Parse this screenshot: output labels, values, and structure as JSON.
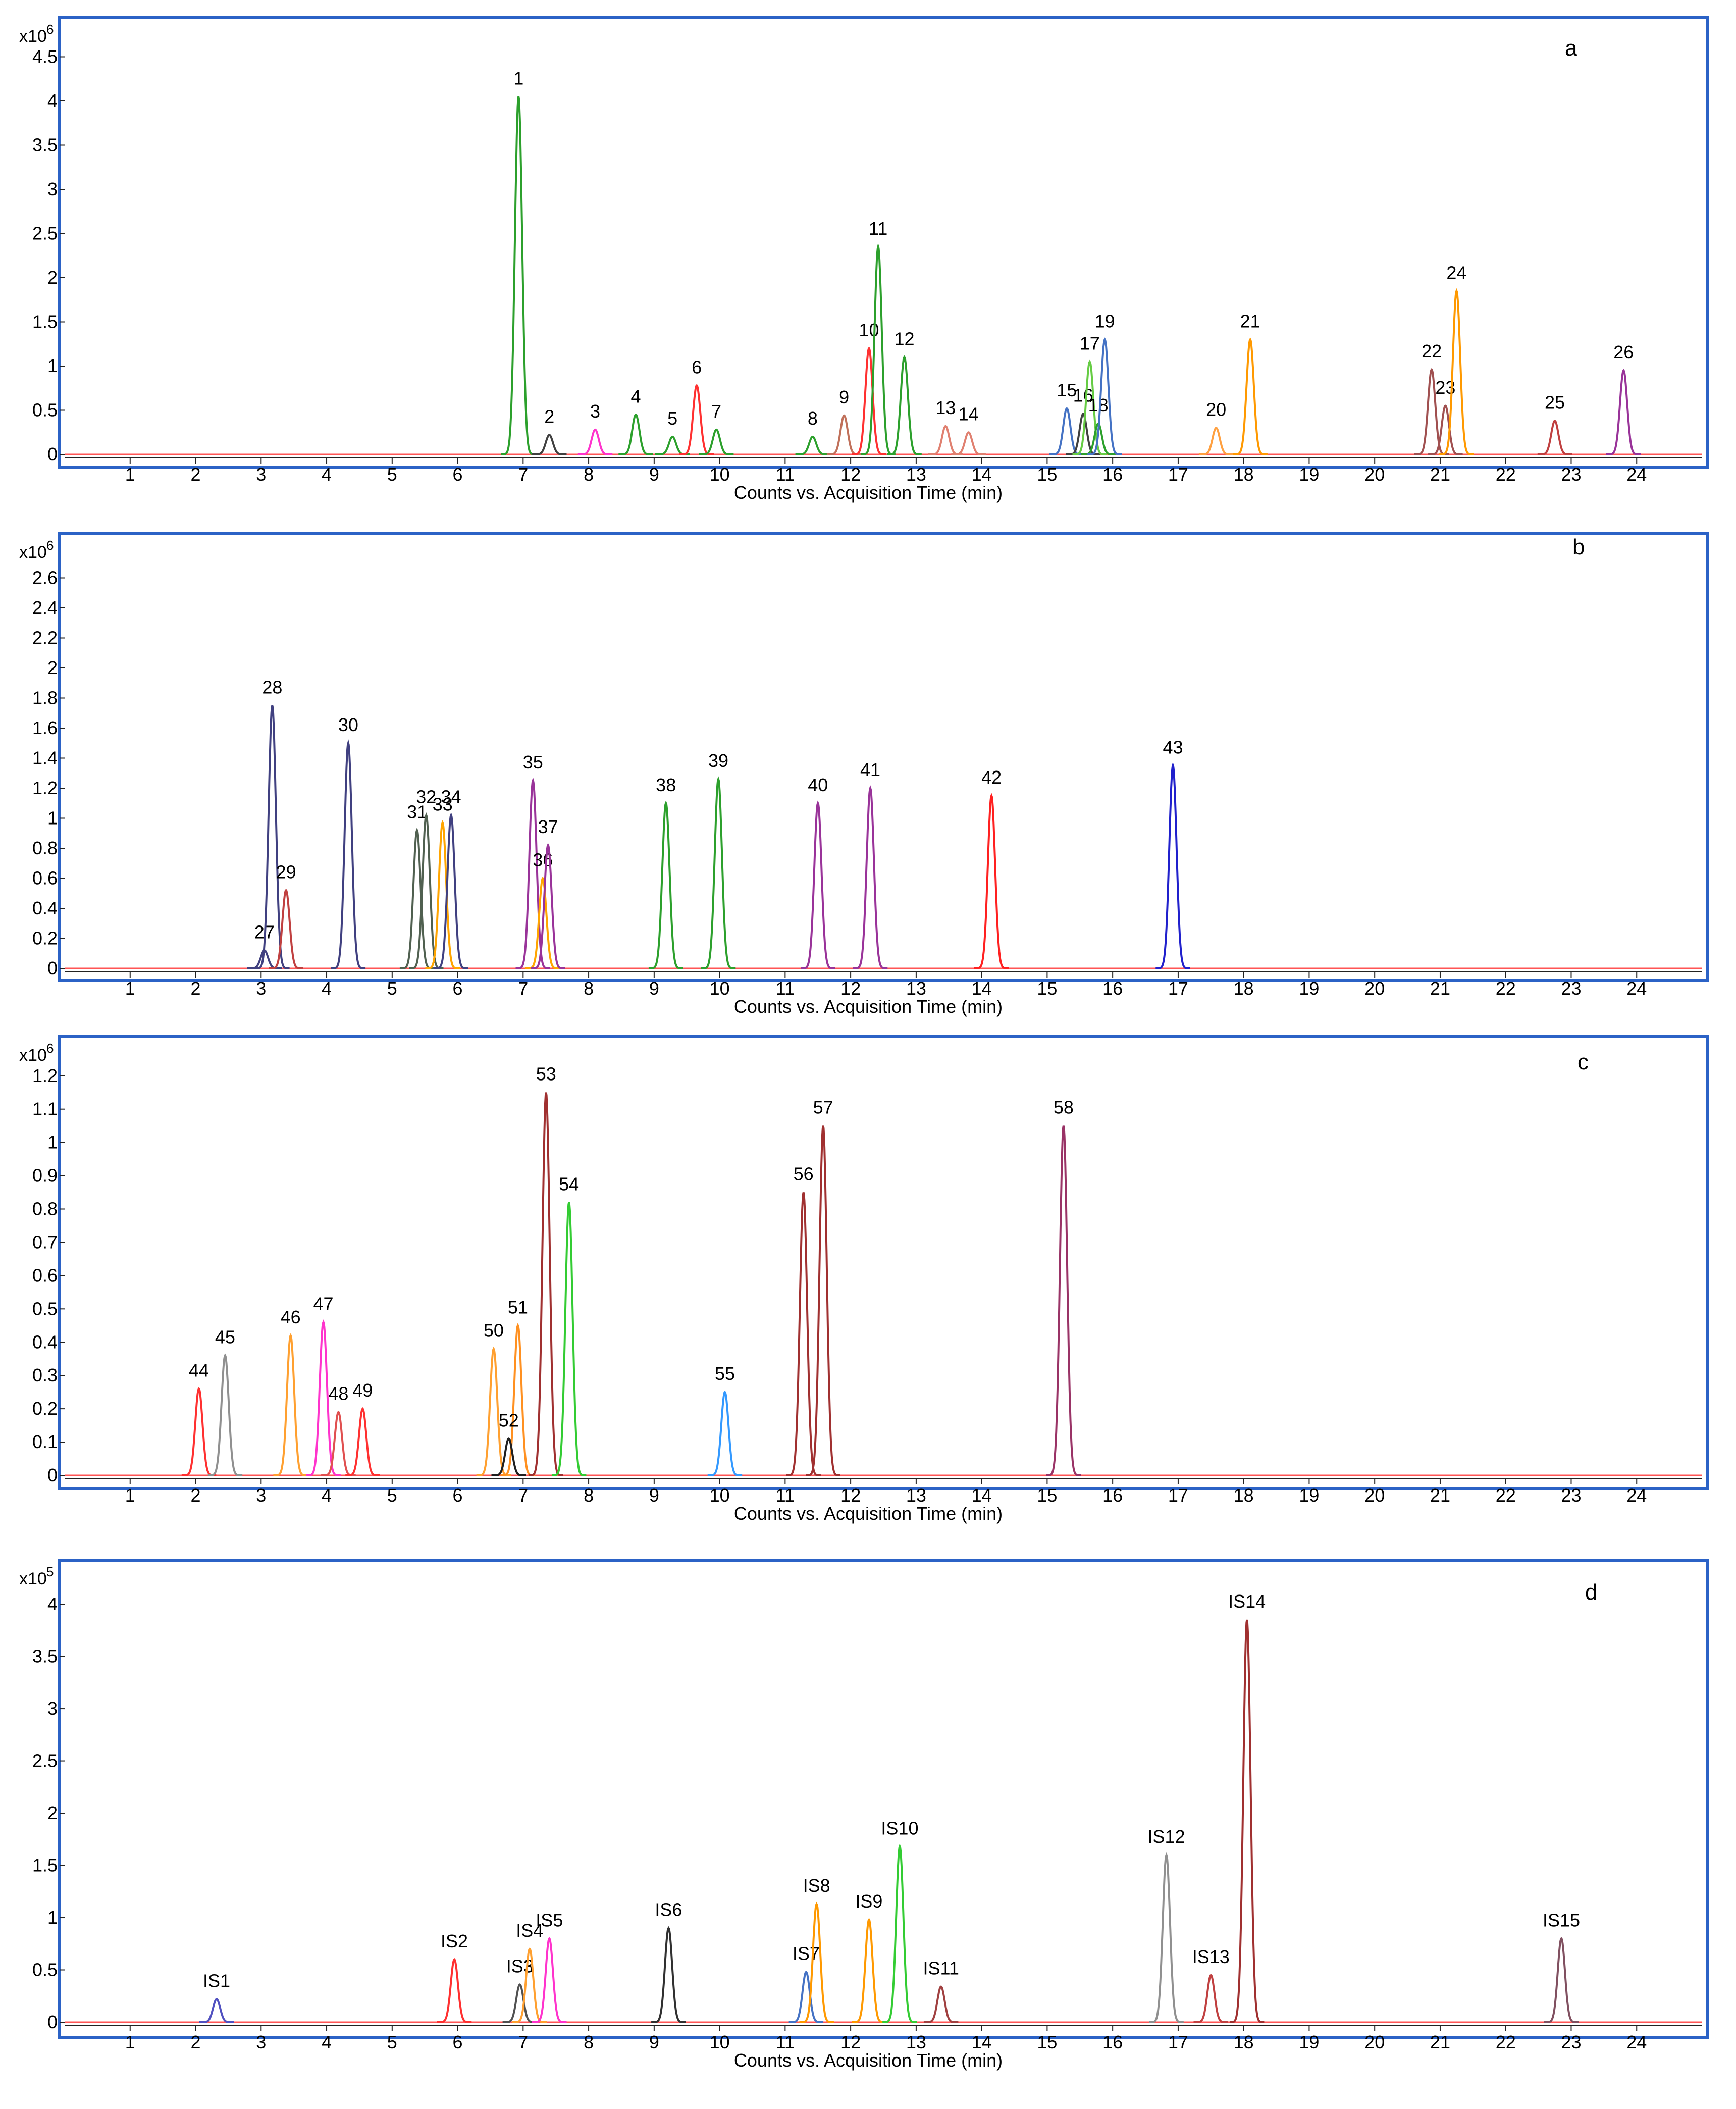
{
  "x_axis": {
    "title": "Counts vs. Acquisition Time (min)",
    "ticks": [
      1,
      2,
      3,
      4,
      5,
      6,
      7,
      8,
      9,
      10,
      11,
      12,
      13,
      14,
      15,
      16,
      17,
      18,
      19,
      20,
      21,
      22,
      23,
      24
    ],
    "range": [
      0,
      25
    ]
  },
  "chart_data": [
    {
      "type": "line",
      "panel": "a",
      "y_multiplier": "x10",
      "y_exponent": "6",
      "ylim": [
        0,
        4.8
      ],
      "ytick_labels": [
        "0",
        "0.5",
        "1",
        "1.5",
        "2",
        "2.5",
        "3",
        "3.5",
        "4",
        "4.5"
      ],
      "peaks": [
        {
          "label": "1",
          "rt": 6.93,
          "height": 4.05,
          "color": "#2ca02c"
        },
        {
          "label": "2",
          "rt": 7.4,
          "height": 0.22,
          "color": "#404040"
        },
        {
          "label": "3",
          "rt": 8.1,
          "height": 0.28,
          "color": "#ff33cc"
        },
        {
          "label": "4",
          "rt": 8.72,
          "height": 0.45,
          "color": "#2ca02c"
        },
        {
          "label": "5",
          "rt": 9.28,
          "height": 0.2,
          "color": "#2ca02c"
        },
        {
          "label": "6",
          "rt": 9.65,
          "height": 0.78,
          "color": "#ff3030"
        },
        {
          "label": "7",
          "rt": 9.95,
          "height": 0.28,
          "color": "#2ca02c"
        },
        {
          "label": "8",
          "rt": 11.42,
          "height": 0.2,
          "color": "#2ca02c"
        },
        {
          "label": "9",
          "rt": 11.9,
          "height": 0.44,
          "color": "#c0705a"
        },
        {
          "label": "10",
          "rt": 12.28,
          "height": 1.2,
          "color": "#ff3030"
        },
        {
          "label": "11",
          "rt": 12.42,
          "height": 2.35,
          "color": "#2ca02c"
        },
        {
          "label": "12",
          "rt": 12.82,
          "height": 1.1,
          "color": "#2ca02c"
        },
        {
          "label": "13",
          "rt": 13.45,
          "height": 0.32,
          "color": "#e08070"
        },
        {
          "label": "14",
          "rt": 13.8,
          "height": 0.25,
          "color": "#e08070"
        },
        {
          "label": "15",
          "rt": 15.3,
          "height": 0.52,
          "color": "#4472c4"
        },
        {
          "label": "16",
          "rt": 15.55,
          "height": 0.46,
          "color": "#404040"
        },
        {
          "label": "17",
          "rt": 15.65,
          "height": 1.05,
          "color": "#66cc44"
        },
        {
          "label": "18",
          "rt": 15.78,
          "height": 0.35,
          "color": "#2ca02c"
        },
        {
          "label": "19",
          "rt": 15.88,
          "height": 1.3,
          "color": "#4472c4"
        },
        {
          "label": "20",
          "rt": 17.58,
          "height": 0.3,
          "color": "#ffa040"
        },
        {
          "label": "21",
          "rt": 18.1,
          "height": 1.3,
          "color": "#ff9900"
        },
        {
          "label": "22",
          "rt": 20.87,
          "height": 0.96,
          "color": "#a05050"
        },
        {
          "label": "23",
          "rt": 21.08,
          "height": 0.55,
          "color": "#a05050"
        },
        {
          "label": "24",
          "rt": 21.25,
          "height": 1.85,
          "color": "#ff9900"
        },
        {
          "label": "25",
          "rt": 22.75,
          "height": 0.38,
          "color": "#c04040"
        },
        {
          "label": "26",
          "rt": 23.8,
          "height": 0.95,
          "color": "#993399"
        }
      ]
    },
    {
      "type": "line",
      "panel": "b",
      "y_multiplier": "x10",
      "y_exponent": "6",
      "ylim": [
        0,
        2.8
      ],
      "ytick_labels": [
        "0",
        "0.2",
        "0.4",
        "0.6",
        "0.8",
        "1",
        "1.2",
        "1.4",
        "1.6",
        "1.8",
        "2",
        "2.2",
        "2.4",
        "2.6"
      ],
      "peaks": [
        {
          "label": "27",
          "rt": 3.05,
          "height": 0.12,
          "color": "#404080"
        },
        {
          "label": "28",
          "rt": 3.17,
          "height": 1.75,
          "color": "#404080"
        },
        {
          "label": "29",
          "rt": 3.38,
          "height": 0.52,
          "color": "#c04040"
        },
        {
          "label": "30",
          "rt": 4.33,
          "height": 1.5,
          "color": "#404080"
        },
        {
          "label": "31",
          "rt": 5.38,
          "height": 0.92,
          "color": "#506050"
        },
        {
          "label": "32",
          "rt": 5.52,
          "height": 1.02,
          "color": "#506050"
        },
        {
          "label": "33",
          "rt": 5.77,
          "height": 0.97,
          "color": "#ffa500"
        },
        {
          "label": "34",
          "rt": 5.9,
          "height": 1.02,
          "color": "#404080"
        },
        {
          "label": "35",
          "rt": 7.15,
          "height": 1.25,
          "color": "#993399"
        },
        {
          "label": "36",
          "rt": 7.3,
          "height": 0.6,
          "color": "#ffa500"
        },
        {
          "label": "37",
          "rt": 7.38,
          "height": 0.82,
          "color": "#993399"
        },
        {
          "label": "38",
          "rt": 9.18,
          "height": 1.1,
          "color": "#2ca02c"
        },
        {
          "label": "39",
          "rt": 9.98,
          "height": 1.26,
          "color": "#2ca02c"
        },
        {
          "label": "40",
          "rt": 11.5,
          "height": 1.1,
          "color": "#993399"
        },
        {
          "label": "41",
          "rt": 12.3,
          "height": 1.2,
          "color": "#993399"
        },
        {
          "label": "42",
          "rt": 14.15,
          "height": 1.15,
          "color": "#ff2020"
        },
        {
          "label": "43",
          "rt": 16.92,
          "height": 1.35,
          "color": "#2020cc"
        }
      ]
    },
    {
      "type": "line",
      "panel": "c",
      "y_multiplier": "x10",
      "y_exponent": "6",
      "ylim": [
        0,
        1.28
      ],
      "ytick_labels": [
        "0",
        "0.1",
        "0.2",
        "0.3",
        "0.4",
        "0.5",
        "0.6",
        "0.7",
        "0.8",
        "0.9",
        "1",
        "1.1",
        "1.2"
      ],
      "peaks": [
        {
          "label": "44",
          "rt": 2.05,
          "height": 0.26,
          "color": "#ff3030"
        },
        {
          "label": "45",
          "rt": 2.45,
          "height": 0.36,
          "color": "#909090"
        },
        {
          "label": "46",
          "rt": 3.45,
          "height": 0.42,
          "color": "#ffa030"
        },
        {
          "label": "47",
          "rt": 3.95,
          "height": 0.46,
          "color": "#ff33cc"
        },
        {
          "label": "48",
          "rt": 4.18,
          "height": 0.19,
          "color": "#e05050"
        },
        {
          "label": "49",
          "rt": 4.55,
          "height": 0.2,
          "color": "#ff3030"
        },
        {
          "label": "50",
          "rt": 6.55,
          "height": 0.38,
          "color": "#ffa030"
        },
        {
          "label": "51",
          "rt": 6.92,
          "height": 0.45,
          "color": "#ff9020"
        },
        {
          "label": "52",
          "rt": 6.78,
          "height": 0.11,
          "color": "#202020"
        },
        {
          "label": "53",
          "rt": 7.35,
          "height": 1.15,
          "color": "#a03030"
        },
        {
          "label": "54",
          "rt": 7.7,
          "height": 0.82,
          "color": "#33cc33"
        },
        {
          "label": "55",
          "rt": 10.08,
          "height": 0.25,
          "color": "#3399ff"
        },
        {
          "label": "56",
          "rt": 11.28,
          "height": 0.85,
          "color": "#a03030"
        },
        {
          "label": "57",
          "rt": 11.58,
          "height": 1.05,
          "color": "#a03030"
        },
        {
          "label": "58",
          "rt": 15.25,
          "height": 1.05,
          "color": "#993366"
        }
      ]
    },
    {
      "type": "line",
      "panel": "d",
      "y_multiplier": "x10",
      "y_exponent": "5",
      "ylim": [
        0,
        4.3
      ],
      "ytick_labels": [
        "0",
        "0.5",
        "1",
        "1.5",
        "2",
        "2.5",
        "3",
        "3.5",
        "4"
      ],
      "peaks": [
        {
          "label": "IS1",
          "rt": 2.32,
          "height": 0.22,
          "color": "#5050c0"
        },
        {
          "label": "IS2",
          "rt": 5.95,
          "height": 0.6,
          "color": "#ff3030"
        },
        {
          "label": "IS3",
          "rt": 6.95,
          "height": 0.36,
          "color": "#505050"
        },
        {
          "label": "IS4",
          "rt": 7.1,
          "height": 0.7,
          "color": "#ffa030"
        },
        {
          "label": "IS5",
          "rt": 7.4,
          "height": 0.8,
          "color": "#ff33cc"
        },
        {
          "label": "IS6",
          "rt": 9.22,
          "height": 0.9,
          "color": "#303030"
        },
        {
          "label": "IS7",
          "rt": 11.32,
          "height": 0.48,
          "color": "#4472c4"
        },
        {
          "label": "IS8",
          "rt": 11.48,
          "height": 1.13,
          "color": "#ff9900"
        },
        {
          "label": "IS9",
          "rt": 12.28,
          "height": 0.98,
          "color": "#ff9900"
        },
        {
          "label": "IS10",
          "rt": 12.75,
          "height": 1.68,
          "color": "#33cc33"
        },
        {
          "label": "IS11",
          "rt": 13.38,
          "height": 0.34,
          "color": "#a04040"
        },
        {
          "label": "IS12",
          "rt": 16.82,
          "height": 1.6,
          "color": "#909090"
        },
        {
          "label": "IS13",
          "rt": 17.5,
          "height": 0.45,
          "color": "#c04040"
        },
        {
          "label": "IS14",
          "rt": 18.05,
          "height": 3.85,
          "color": "#a03030"
        },
        {
          "label": "IS15",
          "rt": 22.85,
          "height": 0.8,
          "color": "#805060"
        }
      ]
    }
  ]
}
